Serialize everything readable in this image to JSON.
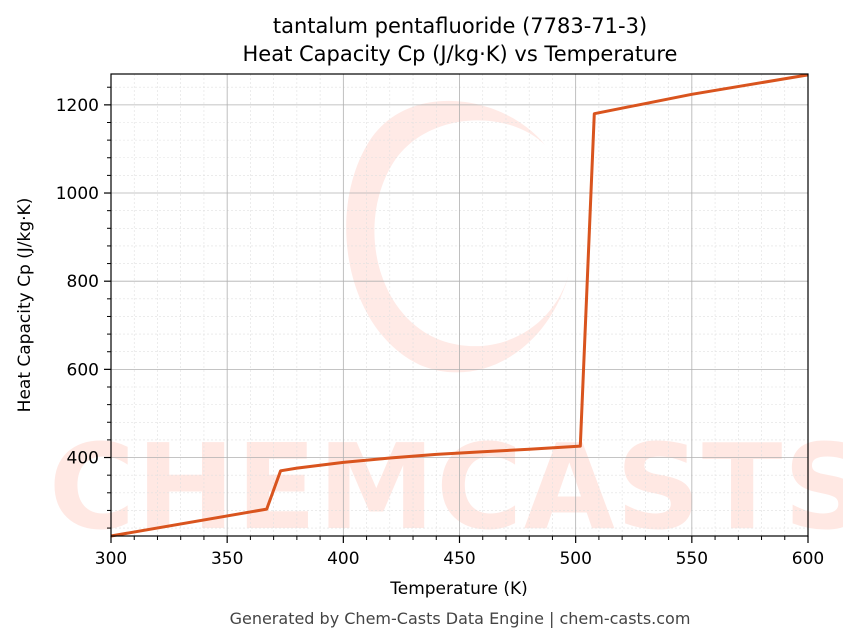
{
  "title_line1": "tantalum pentafluoride (7783-71-3)",
  "title_line2": "Heat Capacity Cp (J/kg·K) vs Temperature",
  "footer": "Generated by Chem-Casts Data Engine | chem-casts.com",
  "watermark": "CHEMCASTS",
  "colors": {
    "line": "#d9541e",
    "watermark": "#ff5533",
    "grid_major": "#b0b0b0",
    "grid_minor": "#e0e0e0"
  },
  "chart_data": {
    "type": "line",
    "xlabel": "Temperature (K)",
    "ylabel": "Heat Capacity Cp (J/kg·K)",
    "xlim": [
      300,
      600
    ],
    "ylim": [
      222,
      1270
    ],
    "x_ticks": [
      300,
      350,
      400,
      450,
      500,
      550,
      600
    ],
    "y_ticks": [
      400,
      600,
      800,
      1000,
      1200
    ],
    "grid": true,
    "series": [
      {
        "x": [
          300,
          367,
          373,
          380,
          400,
          420,
          440,
          460,
          480,
          502,
          508,
          550,
          600
        ],
        "y": [
          222,
          283,
          370,
          376,
          389,
          399,
          407,
          413,
          419,
          426,
          1180,
          1224,
          1268
        ]
      }
    ]
  }
}
